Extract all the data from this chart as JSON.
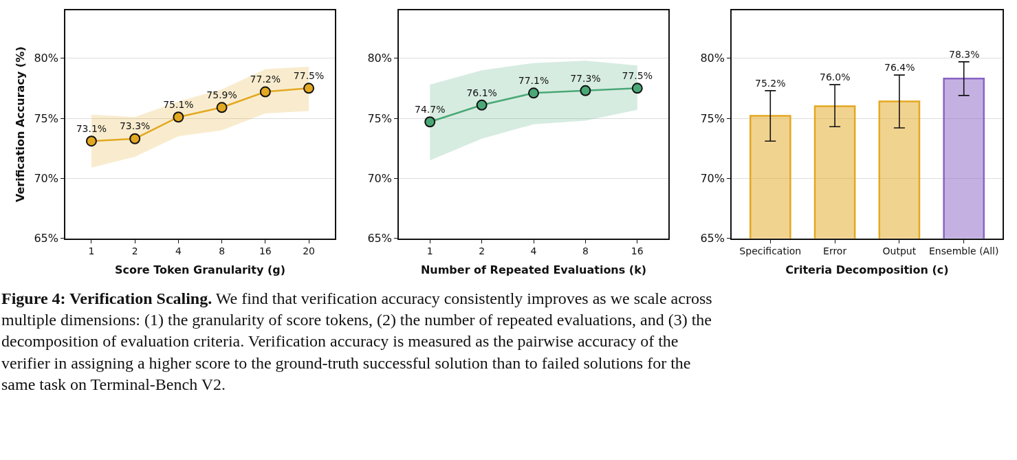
{
  "chart_data": [
    {
      "type": "line",
      "xlabel": "Score Token Granularity (g)",
      "ylabel": "Verification Accuracy (%)",
      "categories": [
        "1",
        "2",
        "4",
        "8",
        "16",
        "20"
      ],
      "series": [
        {
          "color": "#e3a821",
          "values": [
            73.1,
            73.3,
            75.1,
            75.9,
            77.2,
            77.5
          ],
          "value_labels": [
            "73.1%",
            "73.3%",
            "75.1%",
            "75.9%",
            "77.2%",
            "77.5%"
          ],
          "lower": [
            70.9,
            71.8,
            73.5,
            74.0,
            75.4,
            75.6
          ],
          "upper": [
            75.3,
            75.1,
            76.4,
            77.4,
            79.1,
            79.3
          ]
        }
      ],
      "ylim": [
        65,
        84
      ],
      "yticks": [
        {
          "value": 65,
          "label": "65%"
        },
        {
          "value": 70,
          "label": "70%"
        },
        {
          "value": 75,
          "label": "75%"
        },
        {
          "value": 80,
          "label": "80%"
        }
      ],
      "grid": "y",
      "marker": "circle",
      "annotations": [
        "Figure 4: Verification Scaling.",
        "We find that verification accuracy consistently improves as we scale across multiple dimensions: (1) the granularity of score tokens, (2) the number of repeated evaluations, and (3) the decomposition of evaluation criteria. Verification accuracy is measured as the pairwise accuracy of the verifier in assigning a higher score to the ground-truth successful solution than to failed solutions for the same task on Terminal-Bench V2."
      ]
    },
    {
      "type": "line",
      "xlabel": "Number of Repeated Evaluations (k)",
      "categories": [
        "1",
        "2",
        "4",
        "8",
        "16"
      ],
      "series": [
        {
          "color": "#4aa877",
          "values": [
            74.7,
            76.1,
            77.1,
            77.3,
            77.5
          ],
          "value_labels": [
            "74.7%",
            "76.1%",
            "77.1%",
            "77.3%",
            "77.5%"
          ],
          "lower": [
            71.5,
            73.3,
            74.5,
            74.8,
            75.7
          ],
          "upper": [
            77.8,
            79.0,
            79.6,
            79.8,
            79.4
          ]
        }
      ],
      "ylim": [
        65,
        84
      ],
      "yticks": [
        {
          "value": 65,
          "label": "65%"
        },
        {
          "value": 70,
          "label": "70%"
        },
        {
          "value": 75,
          "label": "75%"
        },
        {
          "value": 80,
          "label": "80%"
        }
      ],
      "grid": "y",
      "marker": "circle"
    },
    {
      "type": "bar",
      "xlabel": "Criteria Decomposition (c)",
      "categories": [
        "Specification",
        "Error",
        "Output",
        "Ensemble (All)"
      ],
      "values": [
        75.2,
        76.0,
        76.4,
        78.3
      ],
      "colors": [
        "#e3a821",
        "#e3a821",
        "#e3a821",
        "#8a63c4"
      ],
      "value_labels": [
        "75.2%",
        "76.0%",
        "76.4%",
        "78.3%"
      ],
      "errors": [
        [
          73.1,
          77.3
        ],
        [
          74.3,
          77.8
        ],
        [
          74.2,
          78.6
        ],
        [
          76.9,
          79.7
        ]
      ],
      "ylim": [
        65,
        84
      ],
      "yticks": [
        {
          "value": 65,
          "label": "65%"
        },
        {
          "value": 70,
          "label": "70%"
        },
        {
          "value": 75,
          "label": "75%"
        },
        {
          "value": 80,
          "label": "80%"
        }
      ],
      "grid": "y"
    }
  ]
}
